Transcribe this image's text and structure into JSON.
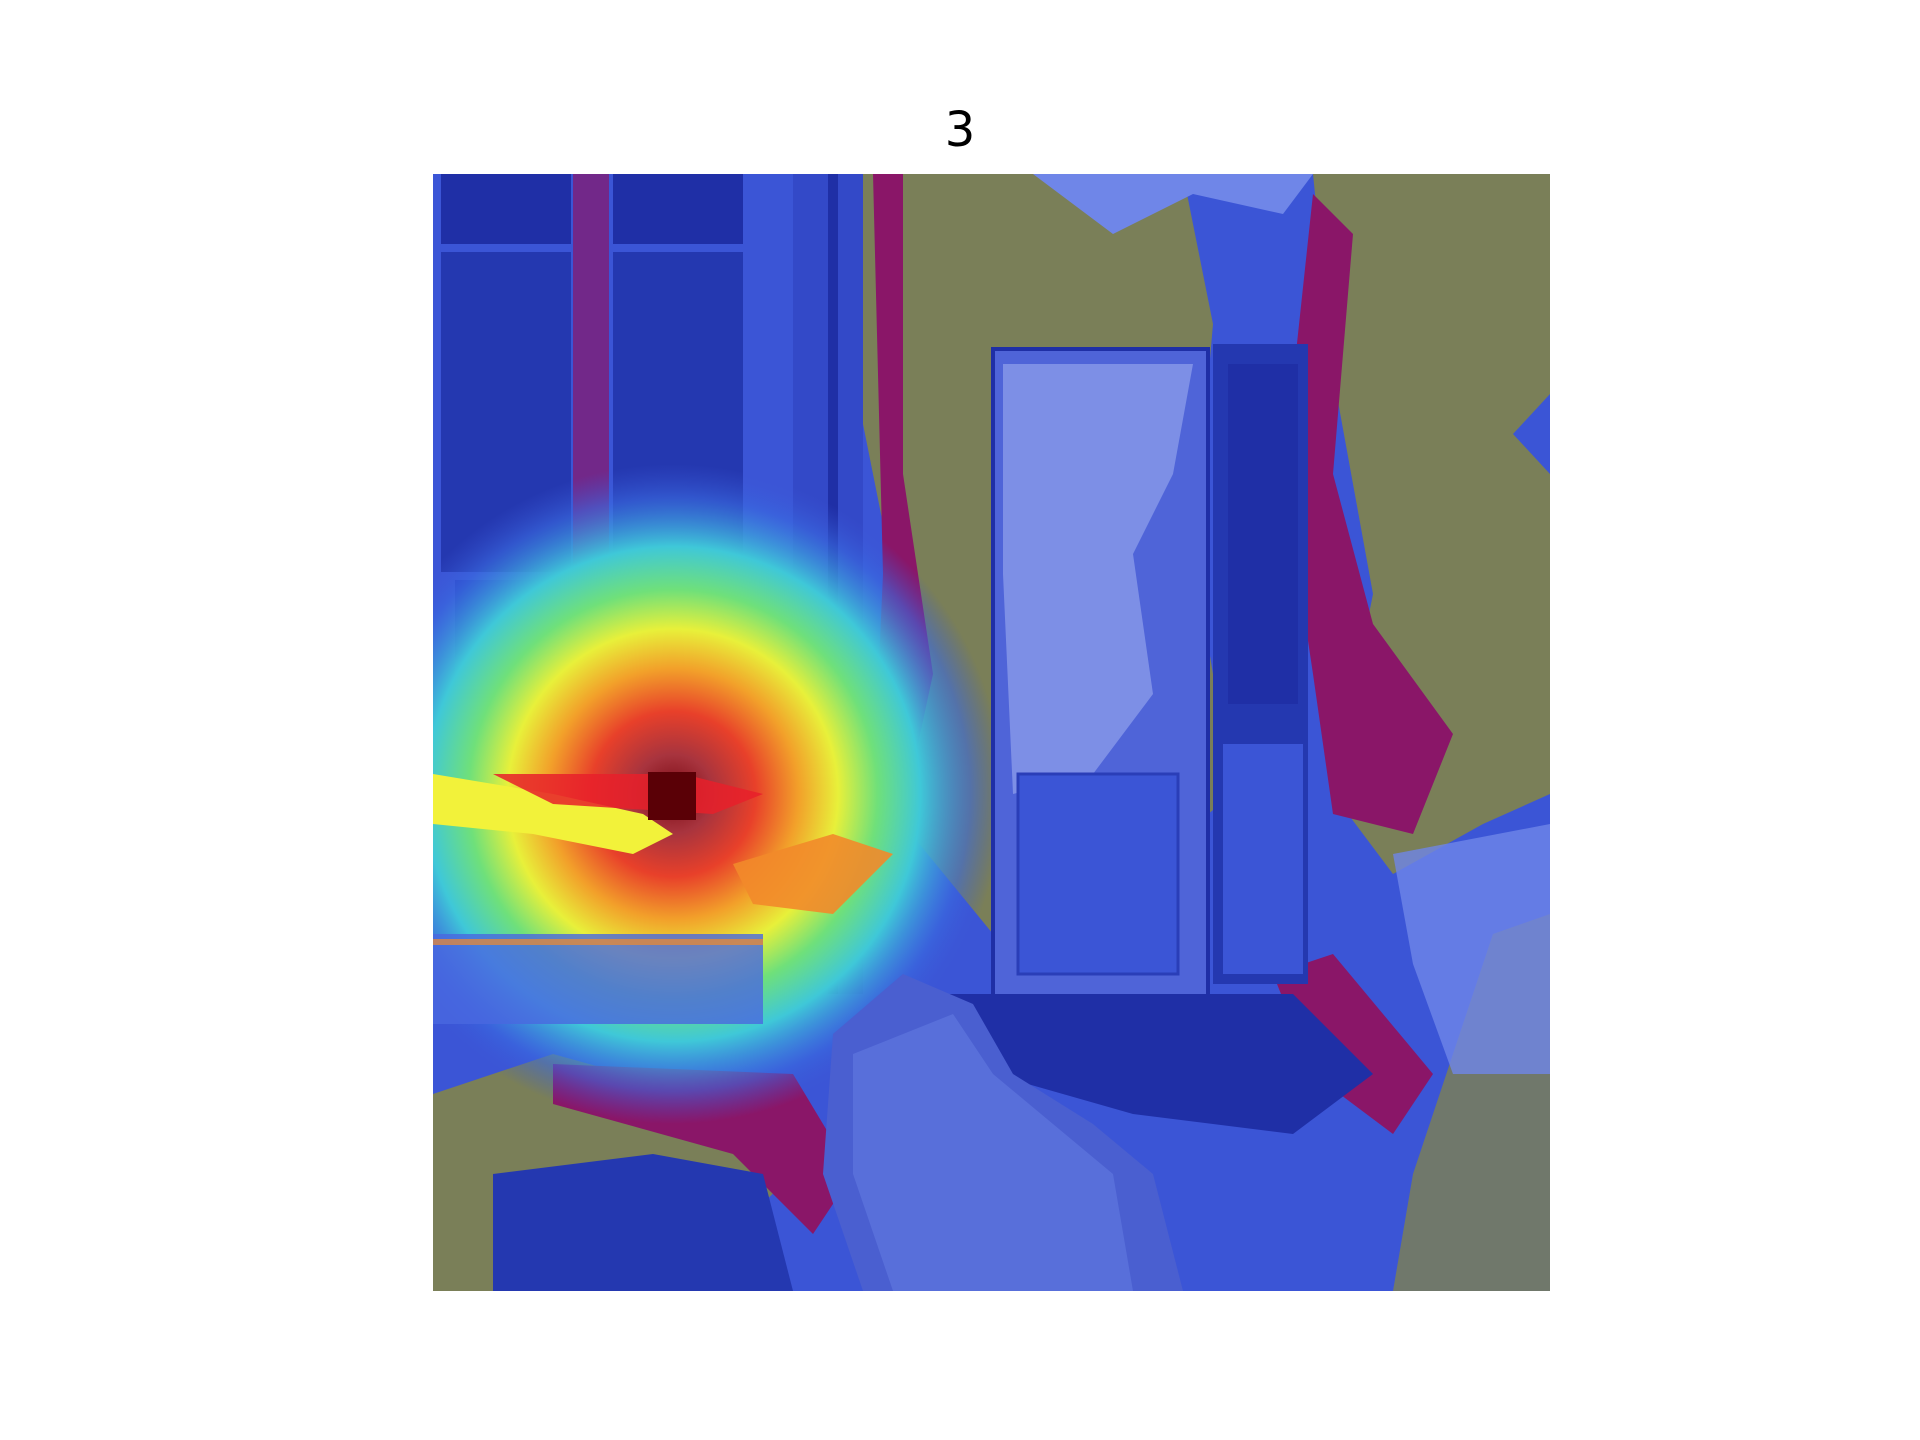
{
  "title": "3",
  "image": {
    "description": "",
    "colormap": "jet",
    "colors": {
      "deep_blue": "#1f2fa6",
      "mid_blue": "#3b55d6",
      "light_blue": "#6f86e8",
      "olive": "#7a7f58",
      "magenta": "#8a1668",
      "cyan": "#3fd0d8",
      "green": "#5fd77a",
      "yellow": "#f2f23a",
      "orange": "#f28a2a",
      "red": "#e8202a",
      "dark_red": "#5a0006"
    }
  }
}
